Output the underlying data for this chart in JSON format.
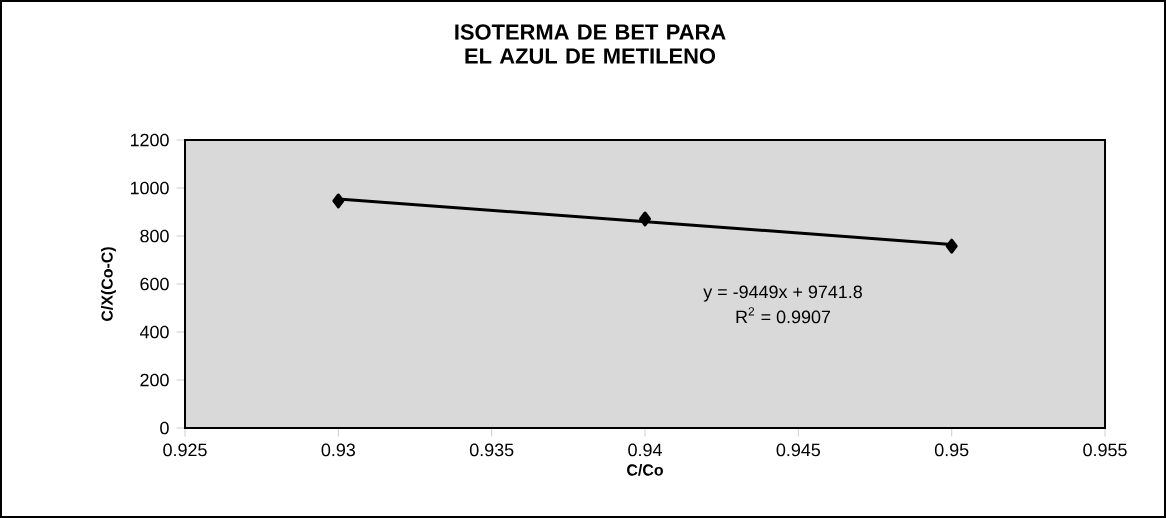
{
  "chart_data": {
    "type": "scatter",
    "title": "ISOTERMA DE BET PARA EL AZUL DE METILENO",
    "xlabel": "C/Co",
    "ylabel": "C/X(Co-C)",
    "x": [
      0.93,
      0.94,
      0.95
    ],
    "series": [
      {
        "color": "#000000",
        "marker": "diamond",
        "values": [
          946,
          871,
          758
        ]
      },
      {
        "type": "line",
        "color": "#000000",
        "marker": "none",
        "x": [
          0.93,
          0.95
        ],
        "values": [
          954,
          765
        ]
      }
    ],
    "xlim": [
      0.925,
      0.955
    ],
    "xticks": [
      0.925,
      0.93,
      0.935,
      0.94,
      0.945,
      0.95,
      0.955
    ],
    "ylim": [
      0,
      1200
    ],
    "yticks": [
      0,
      200,
      400,
      600,
      800,
      1000,
      1200
    ],
    "grid": false,
    "annotations": [
      "y = -9449x + 9741.8",
      "R$^{2}$ = 0.9907"
    ]
  }
}
